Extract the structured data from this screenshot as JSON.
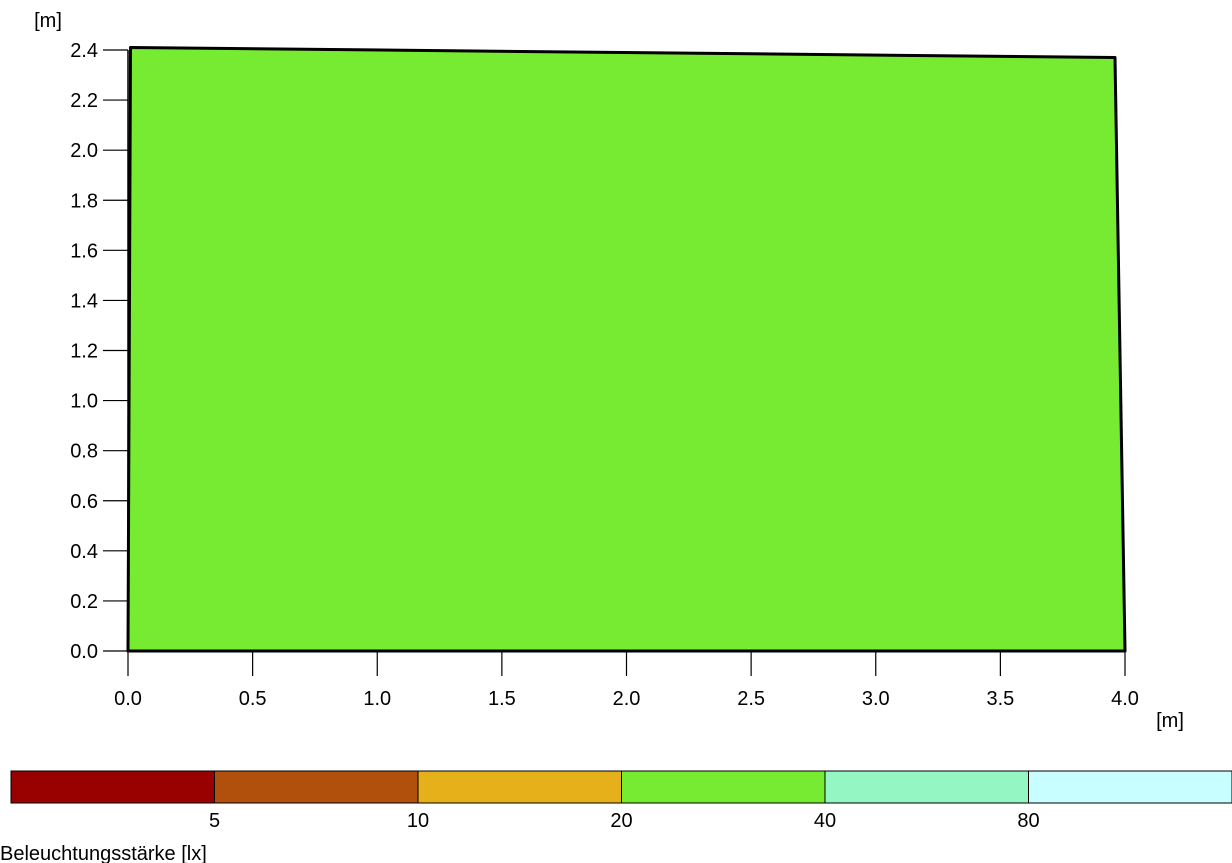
{
  "chart_data": {
    "type": "heatmap",
    "title": "",
    "x_unit": "[m]",
    "y_unit": "[m]",
    "xlim": [
      0.0,
      4.0
    ],
    "ylim": [
      0.0,
      2.4
    ],
    "x_ticks": [
      "0.0",
      "0.5",
      "1.0",
      "1.5",
      "2.0",
      "2.5",
      "3.0",
      "3.5",
      "4.0"
    ],
    "y_ticks": [
      "0.0",
      "0.2",
      "0.4",
      "0.6",
      "0.8",
      "1.0",
      "1.2",
      "1.4",
      "1.6",
      "1.8",
      "2.0",
      "2.2",
      "2.4"
    ],
    "area_polygon": [
      [
        0.0,
        0.0
      ],
      [
        4.0,
        0.0
      ],
      [
        3.96,
        2.37
      ],
      [
        0.01,
        2.41
      ]
    ],
    "area_fill_color": "#76eb32",
    "grid": false,
    "colorbar": {
      "label": "Beleuchtungsstärke [lx]",
      "bins": [
        {
          "color": "#990000"
        },
        {
          "color": "#b0500c"
        },
        {
          "color": "#e6b01a"
        },
        {
          "color": "#76eb32"
        },
        {
          "color": "#94f7c3"
        },
        {
          "color": "#c8feff"
        }
      ],
      "boundaries": [
        "5",
        "10",
        "20",
        "40",
        "80"
      ]
    }
  }
}
